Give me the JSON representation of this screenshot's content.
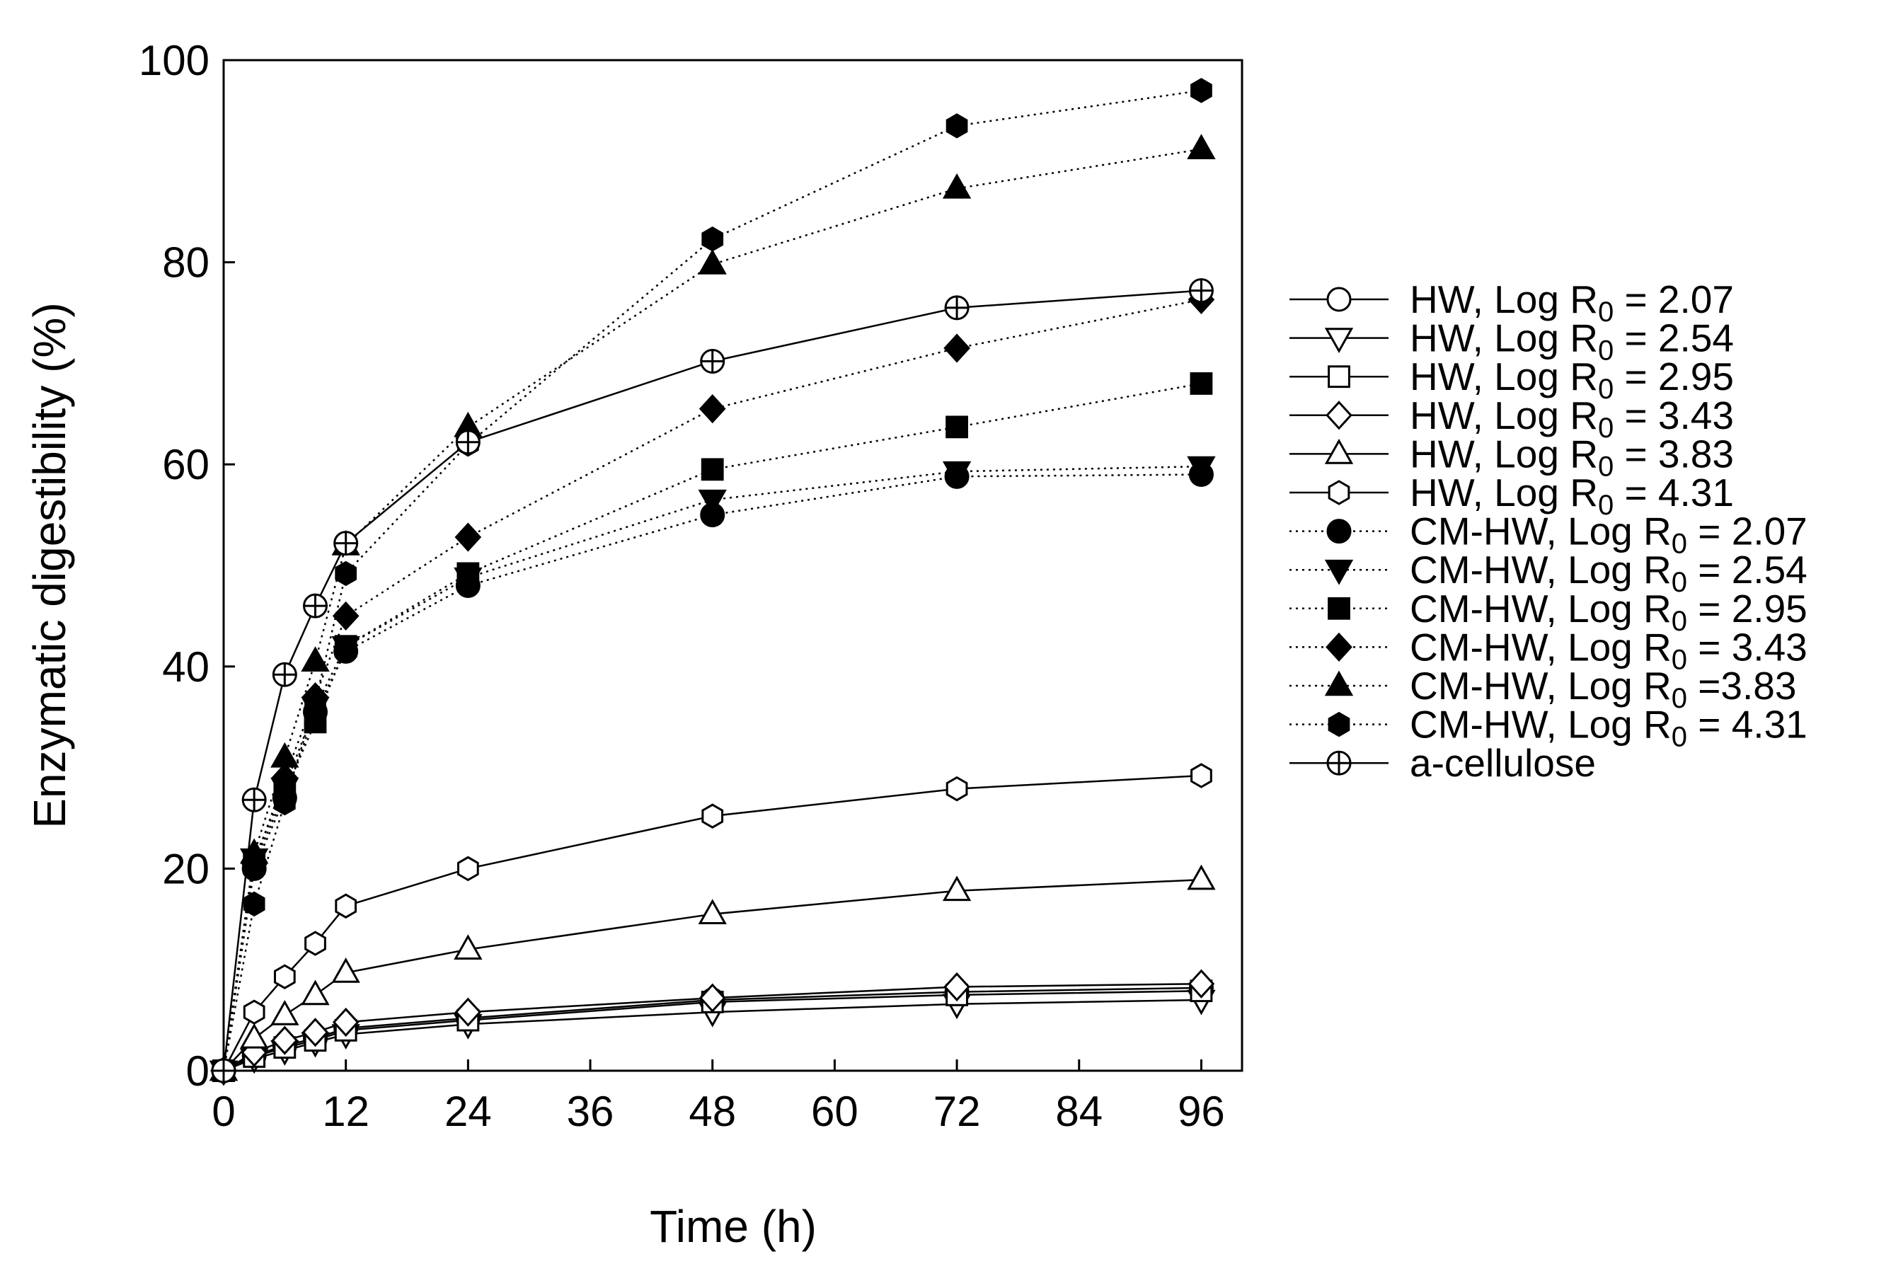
{
  "chart_data": {
    "type": "line",
    "title": "",
    "xlabel": "Time (h)",
    "ylabel": "Enzymatic digestibility (%)",
    "xlim": [
      0,
      100
    ],
    "ylim": [
      0,
      100
    ],
    "xticks": [
      0,
      12,
      24,
      36,
      48,
      60,
      72,
      84,
      96
    ],
    "yticks": [
      0,
      20,
      40,
      60,
      80,
      100
    ],
    "grid": false,
    "legend_position": "right",
    "x": [
      0,
      3,
      6,
      9,
      12,
      24,
      48,
      72,
      96
    ],
    "series": [
      {
        "name": "HW, Log R0 = 2.07",
        "label_main": "HW, Log R",
        "label_sub": "0",
        "label_tail": " = 2.07",
        "marker": "circle",
        "filled": false,
        "line": "solid",
        "values": [
          0,
          1.5,
          2.5,
          3.2,
          4.2,
          5.2,
          7.0,
          7.8,
          8.2
        ]
      },
      {
        "name": "HW, Log R0 = 2.54",
        "label_main": "HW, Log R",
        "label_sub": "0",
        "label_tail": " = 2.54",
        "marker": "triangle-down",
        "filled": false,
        "line": "solid",
        "values": [
          0,
          1.2,
          2.0,
          2.8,
          3.6,
          4.6,
          5.8,
          6.6,
          7.0
        ]
      },
      {
        "name": "HW, Log R0 = 2.95",
        "label_main": "HW, Log R",
        "label_sub": "0",
        "label_tail": " = 2.95",
        "marker": "square",
        "filled": false,
        "line": "solid",
        "values": [
          0,
          1.4,
          2.3,
          3.0,
          4.0,
          5.0,
          6.8,
          7.5,
          7.9
        ]
      },
      {
        "name": "HW, Log R0 = 3.43",
        "label_main": "HW, Log R",
        "label_sub": "0",
        "label_tail": " = 3.43",
        "marker": "diamond",
        "filled": false,
        "line": "solid",
        "values": [
          0,
          1.8,
          3.0,
          3.8,
          4.8,
          5.8,
          7.2,
          8.3,
          8.6
        ]
      },
      {
        "name": "HW, Log R0 = 3.83",
        "label_main": "HW, Log R",
        "label_sub": "0",
        "label_tail": " = 3.83",
        "marker": "triangle-up",
        "filled": false,
        "line": "solid",
        "values": [
          0,
          3.2,
          5.5,
          7.5,
          9.7,
          12.0,
          15.5,
          17.8,
          18.9
        ]
      },
      {
        "name": "HW, Log R0 = 4.31",
        "label_main": "HW, Log R",
        "label_sub": "0",
        "label_tail": " = 4.31",
        "marker": "hexagon",
        "filled": false,
        "line": "solid",
        "values": [
          0,
          5.8,
          9.3,
          12.6,
          16.3,
          20.0,
          25.2,
          27.9,
          29.2
        ]
      },
      {
        "name": "CM-HW, Log R0 =  2.07",
        "label_main": "CM-HW, Log R",
        "label_sub": "0",
        "label_tail": " =  2.07",
        "marker": "circle",
        "filled": true,
        "line": "dotted",
        "values": [
          0,
          20.0,
          27.0,
          35.5,
          41.5,
          48.0,
          55.0,
          58.8,
          59.0
        ]
      },
      {
        "name": "CM-HW, Log R0 = 2.54",
        "label_main": "CM-HW, Log R",
        "label_sub": "0",
        "label_tail": " = 2.54",
        "marker": "triangle-down",
        "filled": true,
        "line": "dotted",
        "values": [
          0,
          21.0,
          28.0,
          36.0,
          42.0,
          48.8,
          56.5,
          59.3,
          59.8
        ]
      },
      {
        "name": "CM-HW, Log R0 = 2.95",
        "label_main": "CM-HW, Log R",
        "label_sub": "0",
        "label_tail": " = 2.95",
        "marker": "square",
        "filled": true,
        "line": "dotted",
        "values": [
          0,
          20.5,
          27.5,
          34.5,
          42.0,
          49.2,
          59.5,
          63.7,
          68.0
        ]
      },
      {
        "name": "CM-HW, Log R0 = 3.43",
        "label_main": "CM-HW, Log R",
        "label_sub": "0",
        "label_tail": " = 3.43",
        "marker": "diamond",
        "filled": true,
        "line": "dotted",
        "values": [
          0,
          20.5,
          29.0,
          37.0,
          45.0,
          52.8,
          65.5,
          71.5,
          76.3
        ]
      },
      {
        "name": "CM-HW, Log R0 =3.83",
        "label_main": "CM-HW, Log R",
        "label_sub": "0",
        "label_tail": " =3.83",
        "marker": "triangle-up",
        "filled": true,
        "line": "dotted",
        "values": [
          0,
          21.5,
          31.0,
          40.5,
          52.0,
          63.7,
          79.8,
          87.3,
          91.2
        ]
      },
      {
        "name": "CM-HW, Log R0 = 4.31",
        "label_main": "CM-HW, Log R",
        "label_sub": "0",
        "label_tail": " = 4.31",
        "marker": "hexagon",
        "filled": true,
        "line": "dotted",
        "values": [
          0,
          16.5,
          26.5,
          36.5,
          49.2,
          62.0,
          82.3,
          93.5,
          97.0
        ]
      },
      {
        "name": "a-cellulose",
        "label_main": "a-cellulose",
        "label_sub": "",
        "label_tail": "",
        "marker": "circle-plus",
        "filled": false,
        "line": "solid",
        "values": [
          0,
          26.8,
          39.2,
          46.0,
          52.2,
          62.2,
          70.2,
          75.5,
          77.2
        ]
      }
    ]
  }
}
